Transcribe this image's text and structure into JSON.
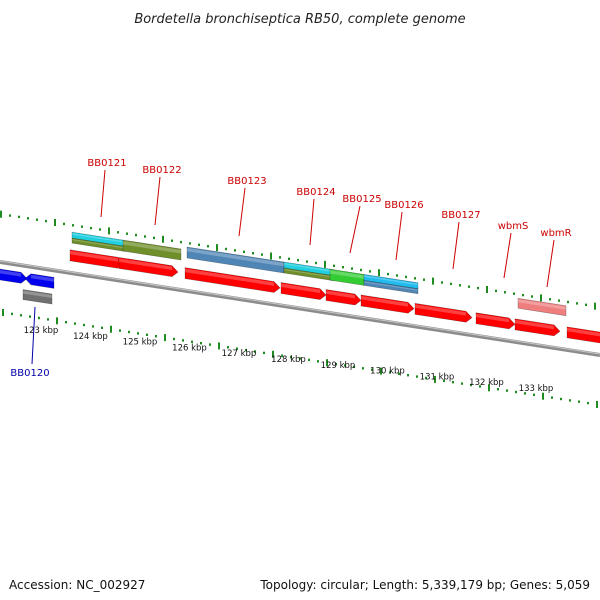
{
  "title": "Bordetella bronchiseptica RB50, complete genome",
  "footer": {
    "accession": "Accession: NC_002927",
    "summary": "Topology: circular; Length: 5,339,179 bp; Genes: 5,059"
  },
  "gene_labels": [
    {
      "text": "BB0121",
      "strand": "plus"
    },
    {
      "text": "BB0122",
      "strand": "plus"
    },
    {
      "text": "BB0123",
      "strand": "plus"
    },
    {
      "text": "BB0124",
      "strand": "plus"
    },
    {
      "text": "BB0125",
      "strand": "plus"
    },
    {
      "text": "BB0126",
      "strand": "plus"
    },
    {
      "text": "BB0127",
      "strand": "plus"
    },
    {
      "text": "wbmS",
      "strand": "plus"
    },
    {
      "text": "wbmR",
      "strand": "plus"
    },
    {
      "text": "BB0120",
      "strand": "minus"
    }
  ],
  "scale_labels": [
    "123 kbp",
    "124 kbp",
    "125 kbp",
    "126 kbp",
    "127 kbp",
    "128 kbp",
    "129 kbp",
    "130 kbp",
    "131 kbp",
    "132 kbp",
    "133 kbp"
  ],
  "colors": {
    "cds": "#ff0000",
    "cds_minus": "#0000ee",
    "backbone": "#8c8c8c",
    "tick": "#1e8c1e",
    "label_plus": "#cc0000",
    "label_minus": "#0000aa",
    "feature_cyan": "#22d0e0",
    "feature_olive": "#6f8f2a",
    "feature_steel": "#4f86b6",
    "feature_lightblue": "#22bbee",
    "feature_green": "#33cc33",
    "feature_pink": "#ef7f7f",
    "feature_gray": "#707070"
  }
}
